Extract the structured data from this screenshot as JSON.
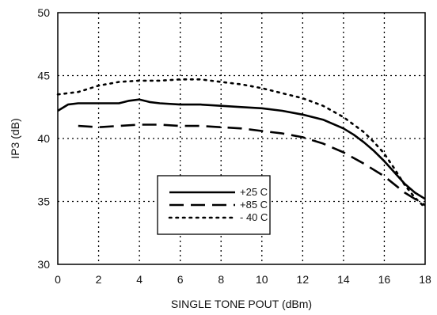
{
  "chart_data": {
    "type": "line",
    "title": "",
    "xlabel": "SINGLE TONE POUT (dBm)",
    "ylabel": "IP3 (dB)",
    "xlim": [
      0,
      18
    ],
    "ylim": [
      30,
      50
    ],
    "xticks": [
      0,
      2,
      4,
      6,
      8,
      10,
      12,
      14,
      16,
      18
    ],
    "yticks": [
      30,
      35,
      40,
      45,
      50
    ],
    "grid": true,
    "legend_position": "lower-left inside",
    "series": [
      {
        "name": "+25 C",
        "style": "solid",
        "color": "#000000",
        "x": [
          0,
          0.5,
          1,
          2,
          3,
          3.5,
          4,
          4.5,
          5,
          6,
          7,
          8,
          9,
          10,
          11,
          12,
          13,
          14,
          14.5,
          15,
          15.5,
          16,
          16.5,
          17,
          17.5,
          18
        ],
        "y": [
          42.2,
          42.7,
          42.8,
          42.8,
          42.8,
          43.0,
          43.1,
          42.9,
          42.8,
          42.7,
          42.7,
          42.6,
          42.5,
          42.4,
          42.2,
          41.9,
          41.5,
          40.8,
          40.3,
          39.7,
          39.0,
          38.2,
          37.3,
          36.4,
          35.7,
          35.2
        ]
      },
      {
        "name": "+85 C",
        "style": "dashed",
        "color": "#000000",
        "x": [
          1,
          2,
          3,
          4,
          5,
          6,
          7,
          8,
          9,
          10,
          11,
          12,
          13,
          14,
          15,
          16,
          17,
          18
        ],
        "y": [
          41.0,
          40.9,
          41.0,
          41.1,
          41.1,
          41.0,
          41.0,
          40.9,
          40.8,
          40.6,
          40.4,
          40.1,
          39.6,
          38.9,
          38.0,
          37.0,
          35.7,
          34.7
        ]
      },
      {
        "name": "- 40 C",
        "style": "dotted",
        "color": "#000000",
        "x": [
          0,
          1,
          2,
          3,
          4,
          5,
          6,
          7,
          8,
          9,
          10,
          11,
          12,
          13,
          14,
          15,
          15.5,
          16,
          16.5,
          17,
          17.5,
          18
        ],
        "y": [
          43.5,
          43.7,
          44.2,
          44.5,
          44.6,
          44.6,
          44.7,
          44.7,
          44.5,
          44.3,
          44.0,
          43.6,
          43.2,
          42.6,
          41.7,
          40.5,
          39.7,
          38.8,
          37.6,
          36.3,
          35.3,
          34.5
        ]
      }
    ]
  }
}
